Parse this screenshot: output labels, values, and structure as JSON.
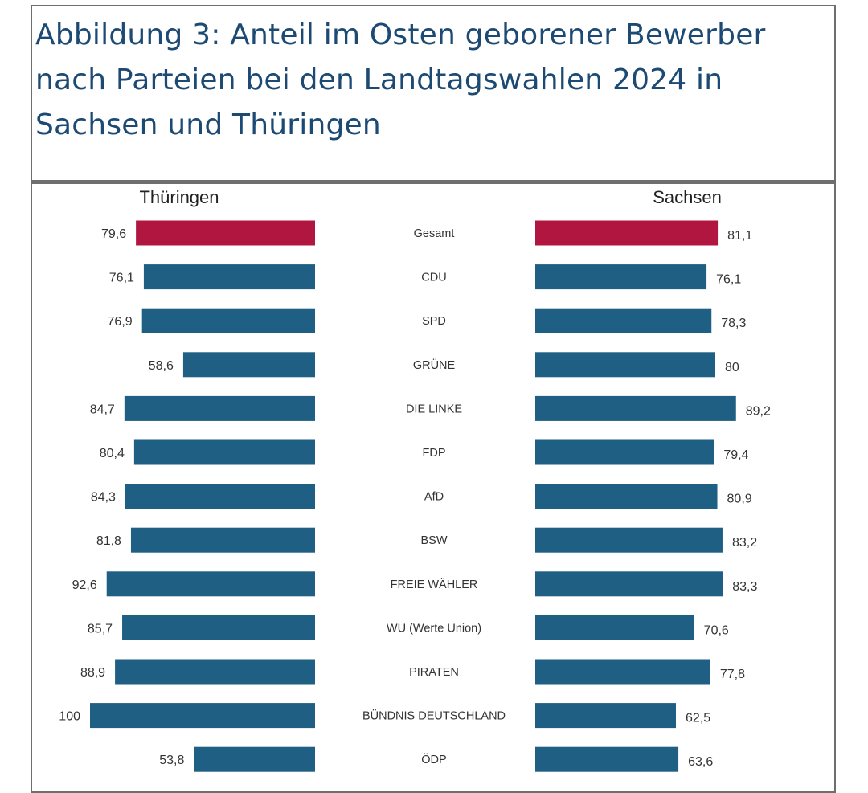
{
  "figure": {
    "title": "Abbildung 3: Anteil im Osten geborener Bewerber nach Parteien bei den Landtagswahlen 2024 in Sachsen und Thüringen"
  },
  "chart_data": {
    "type": "bar",
    "layout": "butterfly",
    "title": "Abbildung 3: Anteil im Osten geborener Bewerber nach Parteien bei den Landtagswahlen 2024 in Sachsen und Thüringen",
    "left_header": "Thüringen",
    "right_header": "Sachsen",
    "categories": [
      "Gesamt",
      "CDU",
      "SPD",
      "GRÜNE",
      "DIE LINKE",
      "FDP",
      "AfD",
      "BSW",
      "FREIE WÄHLER",
      "WU (Werte Union)",
      "PIRATEN",
      "BÜNDNIS DEUTSCHLAND",
      "ÖDP"
    ],
    "series": [
      {
        "name": "Thüringen",
        "side": "left",
        "values": [
          79.6,
          76.1,
          76.9,
          58.6,
          84.7,
          80.4,
          84.3,
          81.8,
          92.6,
          85.7,
          88.9,
          100,
          53.8
        ],
        "labels": [
          "79,6",
          "76,1",
          "76,9",
          "58,6",
          "84,7",
          "80,4",
          "84,3",
          "81,8",
          "92,6",
          "85,7",
          "88,9",
          "100",
          "53,8"
        ]
      },
      {
        "name": "Sachsen",
        "side": "right",
        "values": [
          81.1,
          76.1,
          78.3,
          80,
          89.2,
          79.4,
          80.9,
          83.2,
          83.3,
          70.6,
          77.8,
          62.5,
          63.6
        ],
        "labels": [
          "81,1",
          "76,1",
          "78,3",
          "80",
          "89,2",
          "79,4",
          "80,9",
          "83,2",
          "83,3",
          "70,6",
          "77,8",
          "62,5",
          "63,6"
        ]
      }
    ],
    "colors": {
      "highlight": "#b0163f",
      "bar": "#1e5f83"
    },
    "highlight_category": "Gesamt",
    "xlim": [
      0,
      100
    ]
  }
}
